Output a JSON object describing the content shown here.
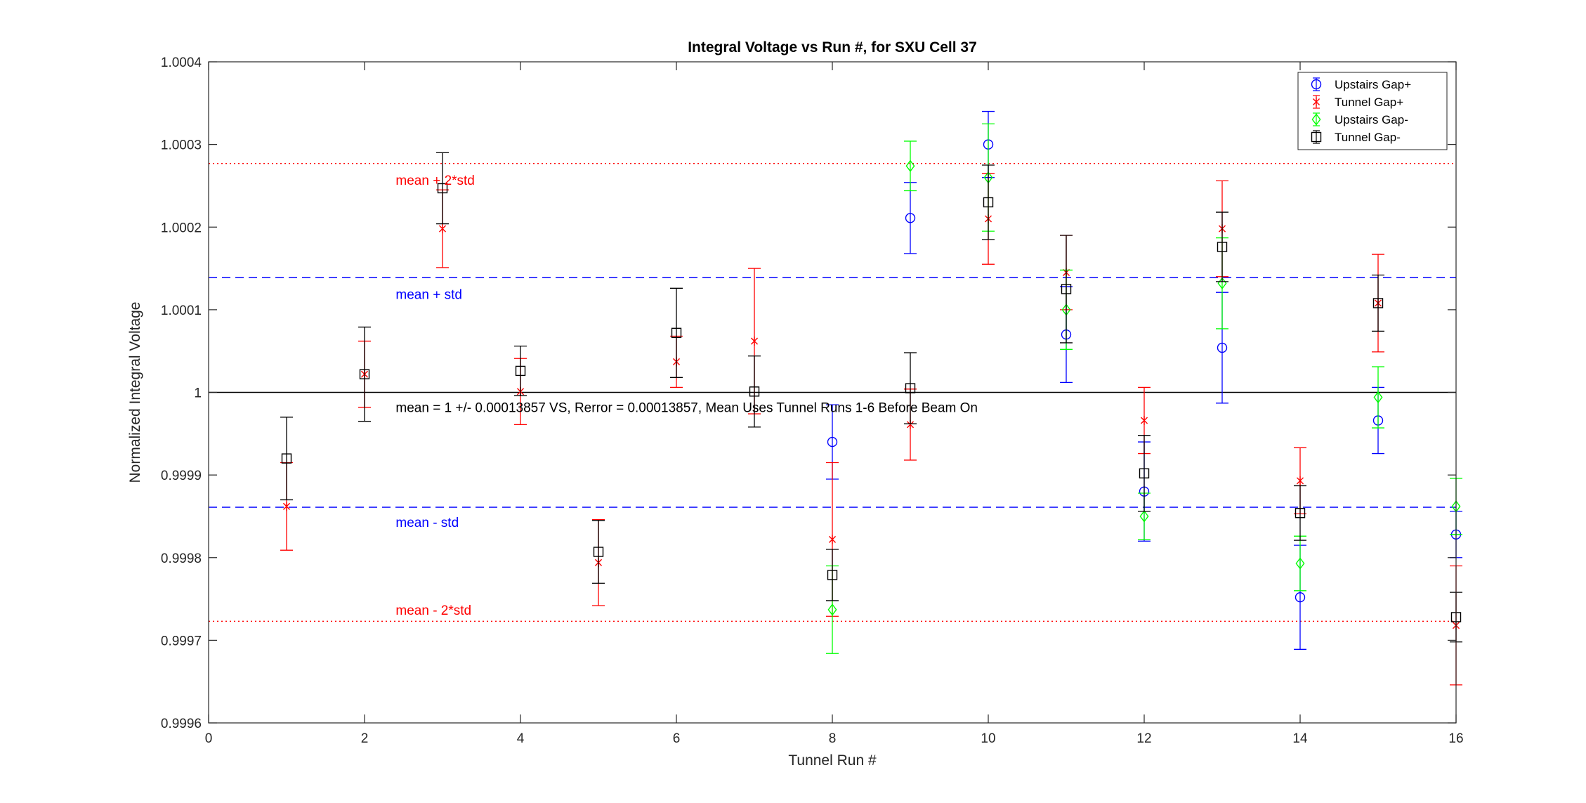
{
  "chart_data": {
    "type": "scatter",
    "title": "Integral Voltage vs Run #, for SXU Cell 37",
    "xlabel": "Tunnel Run #",
    "ylabel": "Normalized Integral Voltage",
    "xlim": [
      0,
      16
    ],
    "ylim": [
      0.9996,
      1.0004
    ],
    "xticks": [
      0,
      2,
      4,
      6,
      8,
      10,
      12,
      14,
      16
    ],
    "yticks": [
      0.9996,
      0.9997,
      0.9998,
      0.9999,
      1,
      1.0001,
      1.0002,
      1.0003,
      1.0004
    ],
    "ytick_labels": [
      "0.9996",
      "0.9997",
      "0.9998",
      "0.9999",
      "1",
      "1.0001",
      "1.0002",
      "1.0003",
      "1.0004"
    ],
    "grid": false,
    "legend_position": "top-right",
    "series": [
      {
        "name": "Upstairs Gap+",
        "color": "#0000ff",
        "marker": "circle",
        "points": [
          {
            "x": 8,
            "y": 0.99994,
            "err": 4.5e-05
          },
          {
            "x": 9,
            "y": 1.000211,
            "err": 4.3e-05
          },
          {
            "x": 10,
            "y": 1.0003,
            "err": 4e-05
          },
          {
            "x": 11,
            "y": 1.00007,
            "err": 5.8e-05
          },
          {
            "x": 12,
            "y": 0.99988,
            "err": 6e-05
          },
          {
            "x": 13,
            "y": 1.000054,
            "err": 6.7e-05
          },
          {
            "x": 14,
            "y": 0.999752,
            "err": 6.3e-05
          },
          {
            "x": 15,
            "y": 0.999966,
            "err": 4e-05
          },
          {
            "x": 16,
            "y": 0.999828,
            "err": 2.8e-05
          }
        ]
      },
      {
        "name": "Tunnel Gap+",
        "color": "#ff0000",
        "marker": "asterisk",
        "points": [
          {
            "x": 1,
            "y": 0.999862,
            "err": 5.3e-05
          },
          {
            "x": 2,
            "y": 1.000022,
            "err": 4e-05
          },
          {
            "x": 3,
            "y": 1.000198,
            "err": 4.7e-05
          },
          {
            "x": 4,
            "y": 1.000001,
            "err": 4e-05
          },
          {
            "x": 5,
            "y": 0.999794,
            "err": 5.2e-05
          },
          {
            "x": 6,
            "y": 1.000037,
            "err": 3.1e-05
          },
          {
            "x": 7,
            "y": 1.000062,
            "err": 8.8e-05
          },
          {
            "x": 8,
            "y": 0.999822,
            "err": 9.3e-05
          },
          {
            "x": 9,
            "y": 0.999961,
            "err": 4.3e-05
          },
          {
            "x": 10,
            "y": 1.00021,
            "err": 5.5e-05
          },
          {
            "x": 11,
            "y": 1.000145,
            "err": 4.5e-05
          },
          {
            "x": 12,
            "y": 0.999966,
            "err": 4e-05
          },
          {
            "x": 13,
            "y": 1.000198,
            "err": 5.8e-05
          },
          {
            "x": 14,
            "y": 0.999893,
            "err": 4e-05
          },
          {
            "x": 15,
            "y": 1.000108,
            "err": 5.9e-05
          },
          {
            "x": 16,
            "y": 0.999718,
            "err": 7.2e-05
          }
        ]
      },
      {
        "name": "Upstairs Gap-",
        "color": "#00ff00",
        "marker": "diamond",
        "points": [
          {
            "x": 8,
            "y": 0.999737,
            "err": 5.3e-05
          },
          {
            "x": 9,
            "y": 1.000274,
            "err": 3e-05
          },
          {
            "x": 10,
            "y": 1.00026,
            "err": 6.5e-05
          },
          {
            "x": 11,
            "y": 1.0001,
            "err": 4.8e-05
          },
          {
            "x": 12,
            "y": 0.99985,
            "err": 2.8e-05
          },
          {
            "x": 13,
            "y": 1.000132,
            "err": 5.5e-05
          },
          {
            "x": 14,
            "y": 0.999793,
            "err": 3.3e-05
          },
          {
            "x": 15,
            "y": 0.999994,
            "err": 3.7e-05
          },
          {
            "x": 16,
            "y": 0.999862,
            "err": 3.4e-05
          }
        ]
      },
      {
        "name": "Tunnel Gap-",
        "color": "#000000",
        "marker": "square",
        "points": [
          {
            "x": 1,
            "y": 0.99992,
            "err": 5e-05
          },
          {
            "x": 2,
            "y": 1.000022,
            "err": 5.7e-05
          },
          {
            "x": 3,
            "y": 1.000247,
            "err": 4.3e-05
          },
          {
            "x": 4,
            "y": 1.000026,
            "err": 3e-05
          },
          {
            "x": 5,
            "y": 0.999807,
            "err": 3.8e-05
          },
          {
            "x": 6,
            "y": 1.000072,
            "err": 5.4e-05
          },
          {
            "x": 7,
            "y": 1.000001,
            "err": 4.3e-05
          },
          {
            "x": 8,
            "y": 0.999779,
            "err": 3.1e-05
          },
          {
            "x": 9,
            "y": 1.000005,
            "err": 4.3e-05
          },
          {
            "x": 10,
            "y": 1.00023,
            "err": 4.5e-05
          },
          {
            "x": 11,
            "y": 1.000125,
            "err": 6.5e-05
          },
          {
            "x": 12,
            "y": 0.999902,
            "err": 4.6e-05
          },
          {
            "x": 13,
            "y": 1.000176,
            "err": 4.2e-05
          },
          {
            "x": 14,
            "y": 0.999854,
            "err": 3.3e-05
          },
          {
            "x": 15,
            "y": 1.000108,
            "err": 3.4e-05
          },
          {
            "x": 16,
            "y": 0.999728,
            "err": 3e-05
          }
        ]
      }
    ],
    "reference_lines": [
      {
        "y": 1.000277,
        "color": "#ff0000",
        "style": "dotted",
        "label": "mean + 2*std",
        "label_x": 2.4,
        "label_y": 1.000257
      },
      {
        "y": 1.000139,
        "color": "#0000ff",
        "style": "dashed",
        "label": "mean + std",
        "label_x": 2.4,
        "label_y": 1.000119
      },
      {
        "y": 1.0,
        "color": "#000000",
        "style": "solid",
        "label": "",
        "label_x": 0,
        "label_y": 0
      },
      {
        "y": 0.999861,
        "color": "#0000ff",
        "style": "dashed",
        "label": "mean - std",
        "label_x": 2.4,
        "label_y": 0.999843
      },
      {
        "y": 0.999723,
        "color": "#ff0000",
        "style": "dotted",
        "label": "mean - 2*std",
        "label_x": 2.4,
        "label_y": 0.999737
      }
    ],
    "annotation": {
      "text": "mean = 1 +/- 0.00013857 VS, Rerror = 0.00013857, Mean Uses Tunnel Runs 1-6 Before Beam On",
      "x": 2.4,
      "y": 0.999982
    }
  }
}
